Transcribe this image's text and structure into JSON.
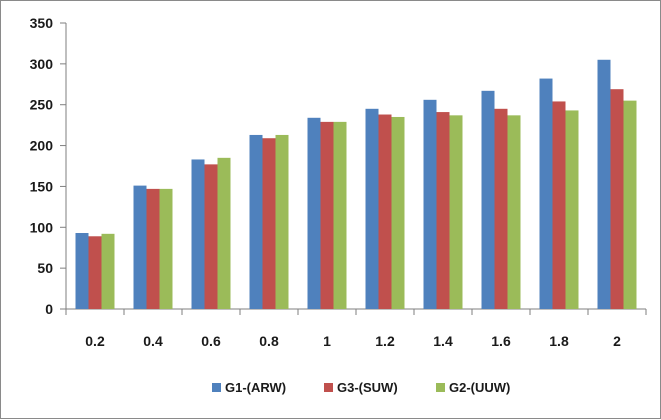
{
  "chart_data": {
    "type": "bar",
    "title": "",
    "xlabel": "",
    "ylabel": "",
    "categories": [
      "0.2",
      "0.4",
      "0.6",
      "0.8",
      "1",
      "1.2",
      "1.4",
      "1.6",
      "1.8",
      "2"
    ],
    "ylim": [
      0,
      350
    ],
    "yticks": [
      0,
      50,
      100,
      150,
      200,
      250,
      300,
      350
    ],
    "grid": false,
    "legend_position": "bottom",
    "series": [
      {
        "name": "G1-(ARW)",
        "color": "#4f81bd",
        "values": [
          93,
          151,
          183,
          213,
          234,
          245,
          256,
          267,
          282,
          305
        ]
      },
      {
        "name": "G3-(SUW)",
        "color": "#c0504d",
        "values": [
          89,
          147,
          177,
          209,
          229,
          238,
          241,
          245,
          254,
          269
        ]
      },
      {
        "name": "G2-(UUW)",
        "color": "#9bbb59",
        "values": [
          92,
          147,
          185,
          213,
          229,
          235,
          237,
          237,
          243,
          255
        ]
      }
    ]
  }
}
